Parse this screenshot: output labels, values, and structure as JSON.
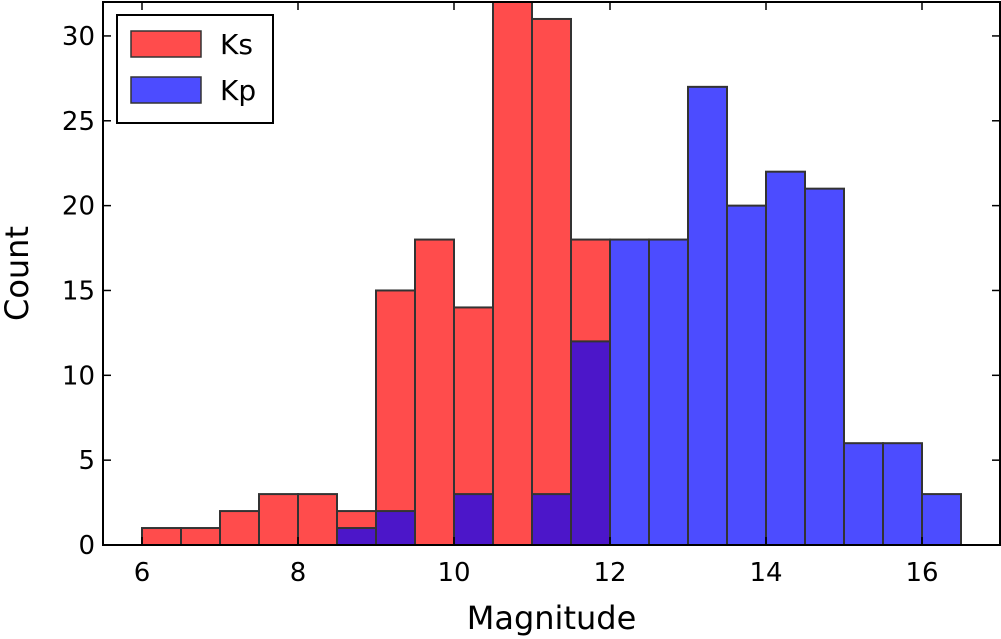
{
  "chart_data": {
    "type": "bar",
    "xlabel": "Magnitude",
    "ylabel": "Count",
    "xlim": [
      5.5,
      17.0
    ],
    "ylim": [
      0,
      32
    ],
    "xticks": [
      6,
      8,
      10,
      12,
      14,
      16
    ],
    "yticks": [
      0,
      5,
      10,
      15,
      20,
      25,
      30
    ],
    "bin_edges": [
      6.0,
      6.5,
      7.0,
      7.5,
      8.0,
      8.5,
      9.0,
      9.5,
      10.0,
      10.5,
      11.0,
      11.5,
      12.0,
      12.5,
      13.0,
      13.5,
      14.0,
      14.5,
      15.0,
      15.5,
      16.0,
      16.5
    ],
    "legend_position": "top-left",
    "series": [
      {
        "name": "Ks",
        "color": "#ff0000",
        "values": [
          1,
          1,
          2,
          3,
          3,
          2,
          15,
          18,
          14,
          32,
          31,
          18,
          0,
          0,
          0,
          0,
          0,
          0,
          0,
          0,
          0
        ]
      },
      {
        "name": "Kp",
        "color": "#0000ff",
        "values": [
          0,
          0,
          0,
          0,
          0,
          1,
          2,
          0,
          3,
          0,
          3,
          12,
          18,
          18,
          27,
          20,
          22,
          21,
          6,
          6,
          3
        ]
      }
    ]
  }
}
